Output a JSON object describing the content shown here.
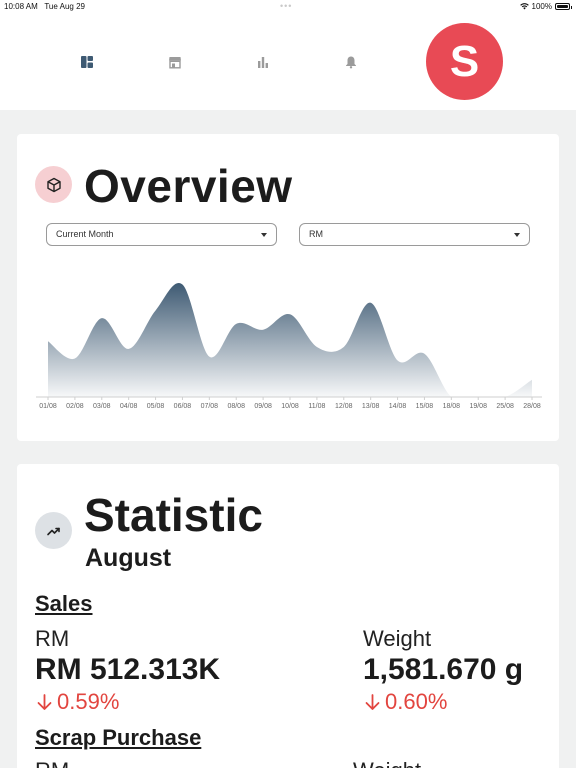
{
  "status_bar": {
    "time": "10:08 AM",
    "date": "Tue Aug 29",
    "battery": "100%",
    "wifi_icon": "wifi-icon",
    "battery_icon": "battery-icon"
  },
  "nav": {
    "items": [
      {
        "name": "dashboard",
        "icon": "dashboard-icon",
        "active": true
      },
      {
        "name": "store",
        "icon": "store-icon",
        "active": false
      },
      {
        "name": "chart",
        "icon": "bar-chart-icon",
        "active": false
      },
      {
        "name": "notifications",
        "icon": "bell-icon",
        "active": false
      }
    ],
    "avatar_initial": "S",
    "avatar_color": "#e84a55"
  },
  "overview": {
    "title": "Overview",
    "icon": "cube-icon",
    "period_select": {
      "value": "Current Month"
    },
    "unit_select": {
      "value": "RM"
    }
  },
  "chart_data": {
    "type": "area",
    "x": [
      "01/08",
      "02/08",
      "03/08",
      "04/08",
      "05/08",
      "06/08",
      "07/08",
      "08/08",
      "09/08",
      "10/08",
      "11/08",
      "12/08",
      "13/08",
      "14/08",
      "15/08",
      "18/08",
      "19/08",
      "25/08",
      "28/08"
    ],
    "values": [
      58,
      40,
      82,
      50,
      90,
      117,
      42,
      76,
      70,
      86,
      52,
      52,
      98,
      38,
      45,
      0,
      0,
      0,
      18
    ],
    "ylim": [
      0,
      130
    ],
    "colors": {
      "top": "#3e5a73",
      "bottom": "#f7f8f9",
      "axis": "#cfcfcf"
    },
    "grid": false,
    "title": "",
    "xlabel": "",
    "ylabel": ""
  },
  "statistic": {
    "title": "Statistic",
    "icon": "trending-up-icon",
    "month": "August",
    "sales": {
      "heading": "Sales",
      "rm": {
        "label": "RM",
        "value": "RM 512.313K",
        "change": "0.59%",
        "direction": "down"
      },
      "weight": {
        "label": "Weight",
        "value": "1,581.670 g",
        "change": "0.60%",
        "direction": "down"
      }
    },
    "scrap_purchase": {
      "heading": "Scrap Purchase",
      "rm": {
        "label": "RM"
      },
      "weight": {
        "label": "Weight"
      }
    },
    "down_color": "#e2453f"
  }
}
